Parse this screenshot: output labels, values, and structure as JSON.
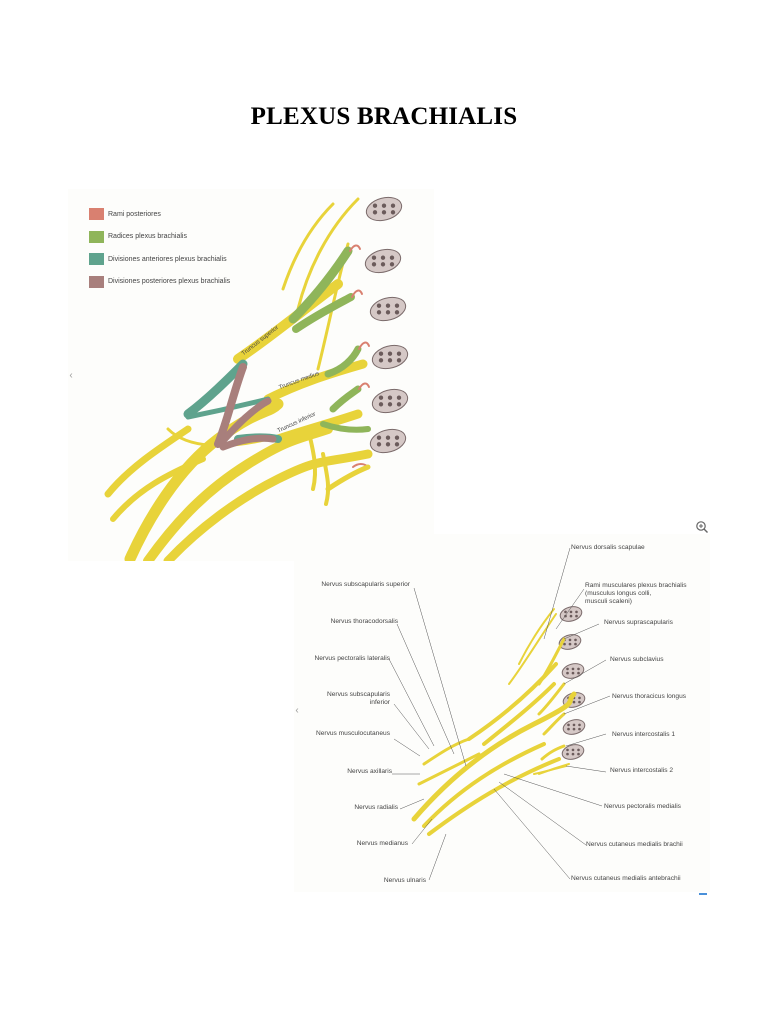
{
  "page": {
    "title": "PLEXUS BRACHIALIS"
  },
  "figure1": {
    "legend": [
      {
        "label": "Rami posteriores",
        "color": "#d98070"
      },
      {
        "label": "Radices plexus brachialis",
        "color": "#8fb55a"
      },
      {
        "label": "Divisiones anteriores plexus brachialis",
        "color": "#5fa38d"
      },
      {
        "label": "Divisiones posteriores plexus brachialis",
        "color": "#a87f7c"
      }
    ],
    "trunk_labels": [
      "Truncus superior",
      "Truncus medius",
      "Truncus inferior"
    ],
    "nav_icon": "chevron-left-icon",
    "colors": {
      "nerve": "#e8d33a",
      "nerve_dark": "#c9b21e",
      "vertebra": "#c9bcbc"
    }
  },
  "figure2": {
    "left_labels": [
      {
        "text": "Nervus subscapularis superior"
      },
      {
        "text": "Nervus thoracodorsalis"
      },
      {
        "text": "Nervus pectoralis lateralis"
      },
      {
        "text": "Nervus subscapularis\ninferior"
      },
      {
        "text": "Nervus musculocutaneus"
      },
      {
        "text": "Nervus axillaris"
      },
      {
        "text": "Nervus radialis"
      },
      {
        "text": "Nervus medianus"
      },
      {
        "text": "Nervus ulnaris"
      }
    ],
    "right_labels": [
      {
        "text": "Nervus dorsalis scapulae"
      },
      {
        "text": "Rami musculares plexus brachialis\n(musculus longus colli,\nmusculi scaleni)"
      },
      {
        "text": "Nervus suprascapularis"
      },
      {
        "text": "Nervus subclavius"
      },
      {
        "text": "Nervus thoracicus longus"
      },
      {
        "text": "Nervus intercostalis 1"
      },
      {
        "text": "Nervus intercostalis 2"
      },
      {
        "text": "Nervus pectoralis medialis"
      },
      {
        "text": "Nervus cutaneus medialis brachii"
      },
      {
        "text": "Nervus cutaneus medialis antebrachii"
      }
    ],
    "nav_icon": "chevron-left-icon",
    "zoom_icon": "zoom-in-icon"
  }
}
